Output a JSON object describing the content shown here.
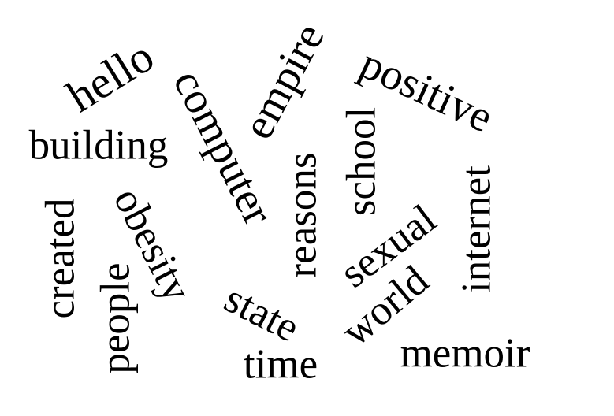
{
  "text_color": "#000000",
  "background_color": "#ffffff",
  "words": [
    "hello",
    "computer",
    "empire",
    "positive",
    "building",
    "school",
    "reasons",
    "internet",
    "created",
    "obesity",
    "sexual",
    "people",
    "world",
    "state",
    "time",
    "memoir"
  ]
}
